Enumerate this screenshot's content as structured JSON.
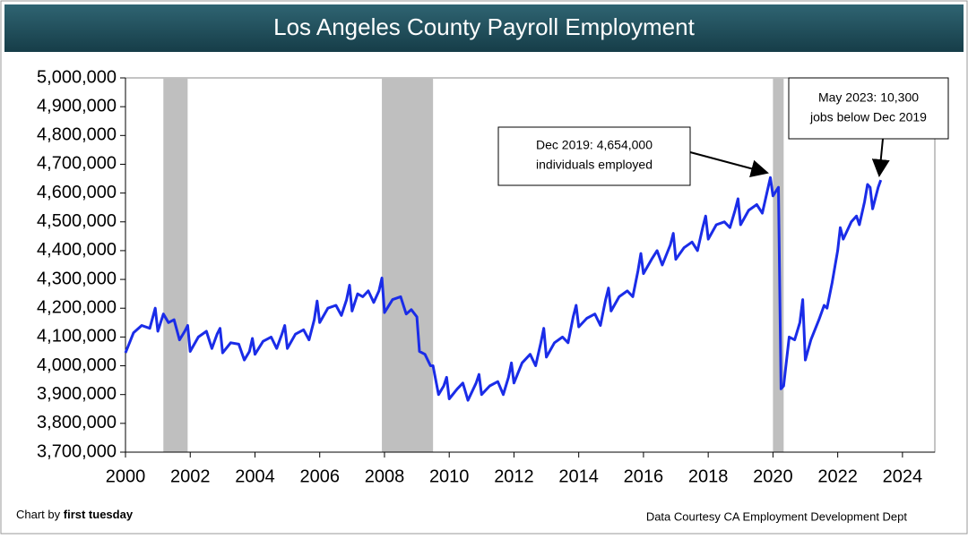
{
  "chart_data": {
    "type": "line",
    "title": "Los Angeles County Payroll Employment",
    "series": [
      {
        "name": "Payroll Employment",
        "color": "#1a2ce8",
        "x": [
          2000.0,
          2000.25,
          2000.5,
          2000.75,
          2000.92,
          2001.0,
          2001.17,
          2001.33,
          2001.5,
          2001.67,
          2001.83,
          2001.92,
          2002.0,
          2002.25,
          2002.5,
          2002.67,
          2002.83,
          2002.92,
          2003.0,
          2003.25,
          2003.5,
          2003.67,
          2003.83,
          2003.92,
          2004.0,
          2004.25,
          2004.5,
          2004.67,
          2004.83,
          2004.92,
          2005.0,
          2005.25,
          2005.5,
          2005.67,
          2005.83,
          2005.92,
          2006.0,
          2006.25,
          2006.5,
          2006.67,
          2006.83,
          2006.92,
          2007.0,
          2007.17,
          2007.33,
          2007.5,
          2007.67,
          2007.83,
          2007.92,
          2008.0,
          2008.25,
          2008.5,
          2008.67,
          2008.83,
          2009.0,
          2009.08,
          2009.25,
          2009.42,
          2009.5,
          2009.67,
          2009.83,
          2009.92,
          2010.0,
          2010.25,
          2010.42,
          2010.58,
          2010.83,
          2010.92,
          2011.0,
          2011.25,
          2011.5,
          2011.67,
          2011.83,
          2011.92,
          2012.0,
          2012.25,
          2012.5,
          2012.67,
          2012.83,
          2012.92,
          2013.0,
          2013.25,
          2013.5,
          2013.67,
          2013.83,
          2013.92,
          2014.0,
          2014.25,
          2014.5,
          2014.67,
          2014.83,
          2014.92,
          2015.0,
          2015.25,
          2015.5,
          2015.67,
          2015.83,
          2015.92,
          2016.0,
          2016.25,
          2016.42,
          2016.58,
          2016.83,
          2016.92,
          2017.0,
          2017.25,
          2017.5,
          2017.67,
          2017.83,
          2017.92,
          2018.0,
          2018.25,
          2018.5,
          2018.67,
          2018.83,
          2018.92,
          2019.0,
          2019.25,
          2019.5,
          2019.67,
          2019.83,
          2019.92,
          2020.0,
          2020.17,
          2020.25,
          2020.33,
          2020.5,
          2020.67,
          2020.83,
          2020.92,
          2021.0,
          2021.17,
          2021.42,
          2021.58,
          2021.67,
          2021.83,
          2021.92,
          2022.0,
          2022.08,
          2022.17,
          2022.42,
          2022.58,
          2022.67,
          2022.83,
          2022.92,
          2023.0,
          2023.08,
          2023.25,
          2023.33
        ],
        "values": [
          4045000,
          4115000,
          4140000,
          4130000,
          4200000,
          4120000,
          4180000,
          4150000,
          4160000,
          4090000,
          4120000,
          4140000,
          4050000,
          4100000,
          4120000,
          4060000,
          4110000,
          4130000,
          4045000,
          4080000,
          4075000,
          4020000,
          4050000,
          4095000,
          4040000,
          4085000,
          4100000,
          4060000,
          4110000,
          4140000,
          4060000,
          4110000,
          4125000,
          4090000,
          4160000,
          4225000,
          4150000,
          4200000,
          4210000,
          4175000,
          4230000,
          4280000,
          4190000,
          4250000,
          4240000,
          4260000,
          4220000,
          4260000,
          4305000,
          4185000,
          4230000,
          4240000,
          4180000,
          4195000,
          4170000,
          4050000,
          4040000,
          4000000,
          4000000,
          3900000,
          3930000,
          3960000,
          3885000,
          3920000,
          3940000,
          3880000,
          3940000,
          3970000,
          3900000,
          3930000,
          3945000,
          3900000,
          3960000,
          4010000,
          3940000,
          4010000,
          4040000,
          4000000,
          4080000,
          4130000,
          4030000,
          4080000,
          4100000,
          4080000,
          4170000,
          4210000,
          4135000,
          4165000,
          4180000,
          4140000,
          4230000,
          4270000,
          4190000,
          4240000,
          4260000,
          4240000,
          4330000,
          4390000,
          4320000,
          4370000,
          4400000,
          4350000,
          4420000,
          4460000,
          4370000,
          4410000,
          4430000,
          4400000,
          4480000,
          4520000,
          4440000,
          4490000,
          4500000,
          4480000,
          4540000,
          4580000,
          4490000,
          4540000,
          4560000,
          4530000,
          4610000,
          4654000,
          4590000,
          4620000,
          3920000,
          3930000,
          4100000,
          4090000,
          4150000,
          4230000,
          4020000,
          4090000,
          4160000,
          4210000,
          4200000,
          4290000,
          4350000,
          4400000,
          4480000,
          4440000,
          4500000,
          4520000,
          4490000,
          4570000,
          4630000,
          4620000,
          4545000,
          4620000,
          4645000
        ]
      }
    ],
    "recessions": [
      [
        2001.17,
        2001.92
      ],
      [
        2007.92,
        2009.5
      ],
      [
        2020.0,
        2020.33
      ]
    ],
    "recession_color": "#bfbfbf",
    "xlim": [
      2000,
      2025
    ],
    "xticks": [
      2000,
      2002,
      2004,
      2006,
      2008,
      2010,
      2012,
      2014,
      2016,
      2018,
      2020,
      2022,
      2024
    ],
    "ylim": [
      3700000,
      5000000
    ],
    "yticks": [
      {
        "value": 3700000,
        "label": "3,700,000"
      },
      {
        "value": 3800000,
        "label": "3,800,000"
      },
      {
        "value": 3900000,
        "label": "3,900,000"
      },
      {
        "value": 4000000,
        "label": "4,000,000"
      },
      {
        "value": 4100000,
        "label": "4,100,000"
      },
      {
        "value": 4200000,
        "label": "4,200,000"
      },
      {
        "value": 4300000,
        "label": "4,300,000"
      },
      {
        "value": 4400000,
        "label": "4,400,000"
      },
      {
        "value": 4500000,
        "label": "4,500,000"
      },
      {
        "value": 4600000,
        "label": "4,600,000"
      },
      {
        "value": 4700000,
        "label": "4,700,000"
      },
      {
        "value": 4800000,
        "label": "4,800,000"
      },
      {
        "value": 4900000,
        "label": "4,900,000"
      },
      {
        "value": 5000000,
        "label": "5,000,000"
      }
    ],
    "annotations": [
      [
        "Dec 2019: 4,654,000",
        "individuals employed"
      ],
      [
        "May 2023: 10,300",
        "jobs below Dec 2019"
      ]
    ],
    "credit": [
      "Chart by ",
      "first tuesday"
    ],
    "source": "Data Courtesy CA Employment Development Dept"
  }
}
